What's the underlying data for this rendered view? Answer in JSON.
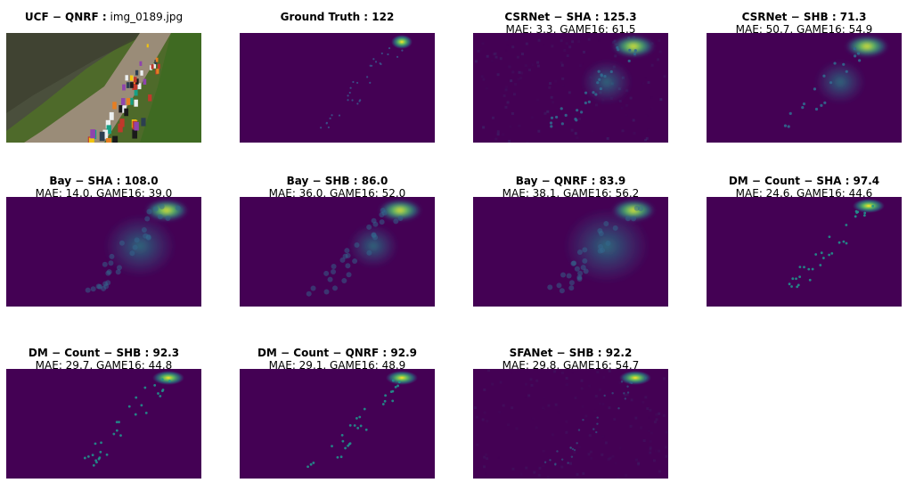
{
  "panels": [
    {
      "id": "input",
      "title_bold": "UCF − QNRF :",
      "title_plain": " img_0189.jpg",
      "subtitle": "",
      "kind": "photo"
    },
    {
      "id": "ground-truth",
      "title_bold": "Ground Truth : 122",
      "title_plain": "",
      "subtitle": "",
      "kind": "gt"
    },
    {
      "id": "csrnet-sha",
      "title_bold": "CSRNet − SHA : 125.3",
      "title_plain": "",
      "subtitle": "MAE: 3.3, GAME16: 61.5",
      "kind": "noisy"
    },
    {
      "id": "csrnet-shb",
      "title_bold": "CSRNet − SHB : 71.3",
      "title_plain": "",
      "subtitle": "MAE: 50.7, GAME16: 54.9",
      "kind": "soft"
    },
    {
      "id": "bay-sha",
      "title_bold": "Bay − SHA : 108.0",
      "title_plain": "",
      "subtitle": "MAE: 14.0, GAME16: 39.0",
      "kind": "blur"
    },
    {
      "id": "bay-shb",
      "title_bold": "Bay − SHB : 86.0",
      "title_plain": "",
      "subtitle": "MAE: 36.0, GAME16: 52.0",
      "kind": "blur-dots"
    },
    {
      "id": "bay-qnrf",
      "title_bold": "Bay − QNRF : 83.9",
      "title_plain": "",
      "subtitle": "MAE: 38.1, GAME16: 56.2",
      "kind": "blur-strong"
    },
    {
      "id": "dm-count-sha",
      "title_bold": "DM − Count − SHA : 97.4",
      "title_plain": "",
      "subtitle": "MAE: 24.6, GAME16: 44.6",
      "kind": "sharp"
    },
    {
      "id": "dm-count-shb",
      "title_bold": "DM − Count − SHB : 92.3",
      "title_plain": "",
      "subtitle": "MAE: 29.7, GAME16: 44.8",
      "kind": "sharp"
    },
    {
      "id": "dm-count-qnrf",
      "title_bold": "DM − Count − QNRF : 92.9",
      "title_plain": "",
      "subtitle": "MAE: 29.1, GAME16: 48.9",
      "kind": "sharp"
    },
    {
      "id": "sfanet-shb",
      "title_bold": "SFANet − SHB : 92.2",
      "title_plain": "",
      "subtitle": "MAE: 29.8, GAME16: 54.7",
      "kind": "faint"
    }
  ],
  "colors": {
    "viridis_bg": "#440154",
    "viridis_mid": "#31688e",
    "viridis_teal": "#21918c",
    "viridis_green": "#5ec962",
    "viridis_yellow": "#fde725",
    "grass": "#4e6a2a",
    "path": "#9a8c78",
    "water": "#4a4f3c"
  },
  "icons": {
    "input-photo": "crowd-photo-icon",
    "density-map": "heatmap-icon"
  }
}
